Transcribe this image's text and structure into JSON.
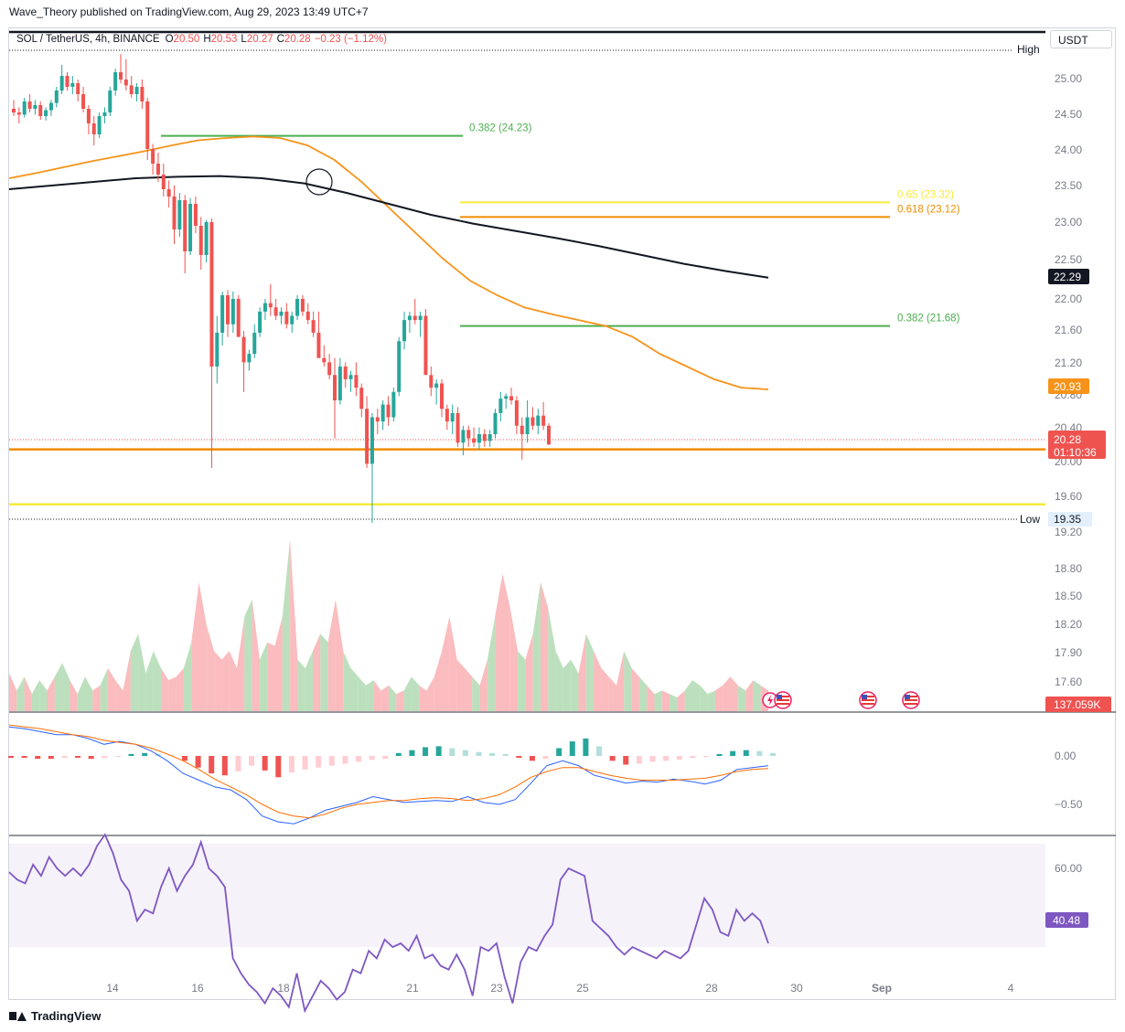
{
  "header": {
    "published": "Wave_Theory published on TradingView.com, Aug 29, 2023 13:49 UTC+7"
  },
  "legend": {
    "symbol": "SOL / TetherUS, 4h, BINANCE",
    "o_label": "O",
    "o_value": "20.50",
    "h_label": "H",
    "h_value": "20.53",
    "l_label": "L",
    "l_value": "20.27",
    "c_label": "C",
    "c_value": "20.28",
    "change": "−0.23 (−1.12%)"
  },
  "currency": "USDT",
  "footer": {
    "brand": "TradingView"
  },
  "colors": {
    "up": "#26a69a",
    "down": "#ef5350",
    "ema_orange": "#f7931a",
    "ema_black": "#131722",
    "fib_green": "#4caf50",
    "fib_yellow": "#f5eb3b",
    "fib_orange": "#f08c00",
    "macd": "#2962ff",
    "signal": "#ff6d00",
    "rsi": "#7e57c2"
  },
  "chart_data": [
    {
      "type": "candlestick",
      "title": "SOL / TetherUS, 4h, BINANCE",
      "y_axis_ticks": [
        "25.00",
        "24.50",
        "24.00",
        "23.50",
        "23.00",
        "22.50",
        "22.00",
        "21.60",
        "21.20",
        "20.80",
        "20.40",
        "20.00",
        "19.60",
        "19.20",
        "18.80",
        "18.50",
        "18.20",
        "17.90",
        "17.60"
      ],
      "x_axis_ticks": [
        "14",
        "16",
        "18",
        "21",
        "23",
        "25",
        "28",
        "30",
        "Sep",
        "4"
      ],
      "candles_ohlc": [
        [
          24.6,
          24.72,
          24.5,
          24.55
        ],
        [
          24.55,
          24.62,
          24.4,
          24.52
        ],
        [
          24.52,
          24.75,
          24.48,
          24.7
        ],
        [
          24.7,
          24.8,
          24.55,
          24.6
        ],
        [
          24.6,
          24.72,
          24.52,
          24.65
        ],
        [
          24.65,
          24.7,
          24.45,
          24.5
        ],
        [
          24.5,
          24.62,
          24.44,
          24.58
        ],
        [
          24.58,
          24.72,
          24.5,
          24.68
        ],
        [
          24.68,
          24.9,
          24.62,
          24.85
        ],
        [
          24.85,
          25.2,
          24.8,
          25.05
        ],
        [
          25.05,
          25.1,
          24.85,
          24.9
        ],
        [
          24.9,
          25.05,
          24.8,
          24.95
        ],
        [
          24.95,
          25.0,
          24.7,
          24.8
        ],
        [
          24.8,
          24.9,
          24.55,
          24.6
        ],
        [
          24.6,
          24.65,
          24.25,
          24.4
        ],
        [
          24.4,
          24.5,
          24.1,
          24.25
        ],
        [
          24.25,
          24.55,
          24.2,
          24.5
        ],
        [
          24.5,
          24.62,
          24.4,
          24.55
        ],
        [
          24.55,
          24.9,
          24.5,
          24.85
        ],
        [
          24.85,
          25.15,
          24.78,
          25.1
        ],
        [
          25.1,
          25.35,
          24.95,
          25.0
        ],
        [
          25.0,
          25.28,
          24.85,
          24.92
        ],
        [
          24.92,
          25.05,
          24.75,
          24.8
        ],
        [
          24.8,
          24.95,
          24.7,
          24.9
        ],
        [
          24.9,
          25.0,
          24.6,
          24.7
        ],
        [
          24.7,
          24.75,
          23.9,
          24.05
        ],
        [
          24.05,
          24.12,
          23.7,
          23.85
        ],
        [
          23.85,
          24.0,
          23.6,
          23.7
        ],
        [
          23.7,
          23.85,
          23.4,
          23.5
        ],
        [
          23.5,
          23.62,
          23.25,
          23.4
        ],
        [
          23.4,
          23.55,
          22.75,
          22.95
        ],
        [
          22.95,
          23.45,
          22.85,
          23.35
        ],
        [
          23.35,
          23.42,
          22.35,
          22.65
        ],
        [
          22.65,
          23.38,
          22.6,
          23.3
        ],
        [
          23.3,
          23.4,
          22.9,
          23.0
        ],
        [
          23.0,
          23.12,
          22.4,
          22.6
        ],
        [
          22.6,
          23.08,
          22.5,
          23.05
        ],
        [
          23.05,
          23.1,
          20.0,
          21.2
        ],
        [
          21.2,
          21.8,
          21.0,
          21.6
        ],
        [
          21.6,
          22.1,
          21.45,
          22.05
        ],
        [
          22.05,
          22.12,
          21.55,
          21.7
        ],
        [
          21.7,
          22.1,
          21.6,
          22.0
        ],
        [
          22.0,
          22.05,
          21.7,
          21.55
        ],
        [
          21.55,
          21.62,
          20.9,
          21.25
        ],
        [
          21.25,
          21.4,
          21.15,
          21.35
        ],
        [
          21.35,
          21.7,
          21.3,
          21.6
        ],
        [
          21.6,
          21.9,
          21.55,
          21.85
        ],
        [
          21.85,
          22.0,
          21.75,
          21.95
        ],
        [
          21.95,
          22.2,
          21.8,
          21.9
        ],
        [
          21.9,
          22.0,
          21.75,
          21.8
        ],
        [
          21.8,
          21.9,
          21.7,
          21.85
        ],
        [
          21.85,
          21.95,
          21.65,
          21.7
        ],
        [
          21.7,
          21.85,
          21.6,
          21.8
        ],
        [
          21.8,
          22.05,
          21.75,
          22.0
        ],
        [
          22.0,
          22.05,
          21.8,
          21.85
        ],
        [
          21.85,
          21.95,
          21.7,
          21.75
        ],
        [
          21.75,
          21.85,
          21.55,
          21.6
        ],
        [
          21.6,
          21.85,
          21.4,
          21.3
        ],
        [
          21.3,
          21.45,
          21.2,
          21.25
        ],
        [
          21.25,
          21.35,
          21.05,
          21.1
        ],
        [
          21.1,
          21.3,
          20.35,
          20.8
        ],
        [
          20.8,
          21.3,
          20.75,
          21.2
        ],
        [
          21.2,
          21.25,
          20.95,
          21.05
        ],
        [
          21.05,
          21.15,
          20.9,
          21.1
        ],
        [
          21.1,
          21.25,
          20.85,
          20.95
        ],
        [
          20.95,
          21.0,
          20.6,
          20.7
        ],
        [
          20.7,
          20.85,
          20.0,
          20.05
        ],
        [
          20.05,
          20.65,
          19.35,
          20.6
        ],
        [
          20.6,
          20.7,
          20.4,
          20.55
        ],
        [
          20.55,
          20.8,
          20.45,
          20.75
        ],
        [
          20.75,
          20.85,
          20.5,
          20.6
        ],
        [
          20.6,
          20.95,
          20.55,
          20.9
        ],
        [
          20.9,
          21.55,
          20.85,
          21.5
        ],
        [
          21.5,
          21.85,
          21.4,
          21.75
        ],
        [
          21.75,
          21.85,
          21.6,
          21.8
        ],
        [
          21.8,
          22.0,
          21.7,
          21.75
        ],
        [
          21.75,
          21.85,
          21.55,
          21.8
        ],
        [
          21.8,
          21.88,
          21.65,
          21.1
        ],
        [
          21.1,
          21.2,
          20.85,
          20.95
        ],
        [
          20.95,
          21.05,
          20.75,
          21.0
        ],
        [
          21.0,
          21.05,
          20.6,
          20.7
        ],
        [
          20.7,
          20.75,
          20.45,
          20.55
        ],
        [
          20.55,
          20.75,
          20.4,
          20.65
        ],
        [
          20.65,
          20.72,
          20.25,
          20.3
        ],
        [
          20.3,
          20.5,
          20.15,
          20.45
        ],
        [
          20.45,
          20.5,
          20.25,
          20.35
        ],
        [
          20.35,
          20.48,
          20.25,
          20.3
        ],
        [
          20.3,
          20.48,
          20.22,
          20.4
        ],
        [
          20.4,
          20.46,
          20.25,
          20.32
        ],
        [
          20.32,
          20.45,
          20.25,
          20.4
        ],
        [
          20.4,
          20.7,
          20.35,
          20.65
        ],
        [
          20.65,
          20.9,
          20.55,
          20.82
        ],
        [
          20.82,
          20.88,
          20.7,
          20.85
        ],
        [
          20.85,
          20.95,
          20.75,
          20.8
        ],
        [
          20.8,
          20.85,
          20.4,
          20.5
        ],
        [
          20.5,
          20.6,
          20.1,
          20.4
        ],
        [
          20.4,
          20.8,
          20.3,
          20.6
        ],
        [
          20.6,
          20.72,
          20.45,
          20.5
        ],
        [
          20.5,
          20.7,
          20.4,
          20.62
        ],
        [
          20.62,
          20.78,
          20.45,
          20.5
        ],
        [
          20.5,
          20.53,
          20.27,
          20.28
        ]
      ],
      "ema_orange": [
        23.65,
        23.72,
        23.8,
        23.88,
        23.95,
        24.02,
        24.1,
        24.17,
        24.2,
        24.22,
        24.2,
        24.1,
        23.9,
        23.6,
        23.25,
        22.9,
        22.55,
        22.25,
        22.05,
        21.9,
        21.82,
        21.75,
        21.68,
        21.55,
        21.35,
        21.2,
        21.05,
        20.95,
        20.93
      ],
      "ema_black": [
        23.5,
        23.55,
        23.6,
        23.65,
        23.67,
        23.68,
        23.65,
        23.58,
        23.45,
        23.3,
        23.15,
        23.03,
        22.93,
        22.83,
        22.72,
        22.6,
        22.48,
        22.38,
        22.29
      ],
      "levels": [
        {
          "label": "0.382 (24.23)",
          "value": 24.23
        },
        {
          "label": "0.65 (23.32)",
          "value": 23.32
        },
        {
          "label": "0.618 (23.12)",
          "value": 23.12
        },
        {
          "label": "0.382 (21.68)",
          "value": 21.68
        },
        {
          "label": "",
          "value": 20.22
        },
        {
          "label": "",
          "value": 19.57
        }
      ],
      "high_label": "High",
      "low_label": "Low",
      "low_value": "19.35",
      "price_badges": {
        "ema_black": "22.29",
        "ema_orange": "20.93",
        "last": "20.28",
        "countdown": "01:10:36"
      }
    },
    {
      "type": "bar",
      "title": "Volume",
      "last_label": "137.059K",
      "values": [
        0.22,
        0.12,
        0.2,
        0.1,
        0.18,
        0.12,
        0.2,
        0.28,
        0.18,
        0.1,
        0.2,
        0.12,
        0.15,
        0.25,
        0.18,
        0.12,
        0.35,
        0.45,
        0.22,
        0.35,
        0.25,
        0.18,
        0.2,
        0.25,
        0.4,
        0.75,
        0.5,
        0.35,
        0.3,
        0.35,
        0.25,
        0.55,
        0.65,
        0.3,
        0.4,
        0.38,
        0.55,
        1.0,
        0.3,
        0.25,
        0.35,
        0.45,
        0.4,
        0.65,
        0.35,
        0.25,
        0.2,
        0.15,
        0.18,
        0.12,
        0.15,
        0.1,
        0.12,
        0.2,
        0.15,
        0.12,
        0.2,
        0.35,
        0.55,
        0.3,
        0.25,
        0.2,
        0.15,
        0.3,
        0.55,
        0.8,
        0.6,
        0.35,
        0.3,
        0.45,
        0.75,
        0.6,
        0.35,
        0.25,
        0.3,
        0.22,
        0.45,
        0.35,
        0.25,
        0.2,
        0.15,
        0.35,
        0.25,
        0.2,
        0.15,
        0.1,
        0.12,
        0.1,
        0.08,
        0.12,
        0.18,
        0.15,
        0.1,
        0.12,
        0.15,
        0.2,
        0.15,
        0.12,
        0.18,
        0.15,
        0.12
      ],
      "colors_up": [
        0,
        1,
        0,
        1,
        1,
        0,
        1,
        1,
        0,
        1,
        1,
        0,
        1,
        0,
        0,
        0,
        1,
        1,
        1,
        1,
        0,
        0,
        0,
        1,
        0,
        0,
        0,
        0,
        0,
        0,
        0,
        1,
        0,
        1,
        0,
        0,
        1,
        0,
        1,
        1,
        0,
        1,
        0,
        0,
        1,
        1,
        1,
        1,
        0,
        0,
        1,
        0,
        1,
        1,
        0,
        0,
        0,
        0,
        0,
        0,
        0,
        1,
        0,
        1,
        0,
        0,
        0,
        1,
        0,
        1,
        0,
        1,
        1,
        1,
        1,
        0,
        1,
        0,
        0,
        0,
        0,
        1,
        0,
        1,
        0,
        1,
        0,
        1,
        0,
        1,
        1,
        1,
        1,
        0,
        0,
        0,
        1,
        0,
        1,
        0,
        0
      ]
    },
    {
      "type": "line",
      "title": "MACD",
      "y_axis_ticks": [
        "0.00",
        "−0.50"
      ],
      "macd": [
        0.3,
        0.28,
        0.25,
        0.22,
        0.22,
        0.18,
        0.12,
        0.15,
        0.12,
        0.05,
        -0.05,
        -0.18,
        -0.25,
        -0.32,
        -0.35,
        -0.45,
        -0.62,
        -0.68,
        -0.7,
        -0.64,
        -0.56,
        -0.52,
        -0.48,
        -0.42,
        -0.45,
        -0.48,
        -0.47,
        -0.46,
        -0.47,
        -0.42,
        -0.48,
        -0.5,
        -0.45,
        -0.28,
        -0.1,
        -0.05,
        -0.1,
        -0.2,
        -0.24,
        -0.28,
        -0.26,
        -0.27,
        -0.24,
        -0.26,
        -0.29,
        -0.25,
        -0.14,
        -0.12,
        -0.1
      ],
      "signal": [
        0.32,
        0.3,
        0.28,
        0.25,
        0.22,
        0.2,
        0.16,
        0.14,
        0.12,
        0.08,
        0.02,
        -0.05,
        -0.14,
        -0.24,
        -0.32,
        -0.4,
        -0.5,
        -0.58,
        -0.62,
        -0.64,
        -0.6,
        -0.54,
        -0.5,
        -0.48,
        -0.46,
        -0.46,
        -0.44,
        -0.43,
        -0.44,
        -0.46,
        -0.44,
        -0.4,
        -0.32,
        -0.22,
        -0.16,
        -0.12,
        -0.12,
        -0.16,
        -0.2,
        -0.23,
        -0.25,
        -0.25,
        -0.25,
        -0.24,
        -0.23,
        -0.2,
        -0.16,
        -0.14,
        -0.13
      ],
      "hist": [
        -0.02,
        -0.02,
        -0.03,
        -0.03,
        -0.02,
        -0.02,
        -0.03,
        -0.02,
        -0.01,
        0.02,
        0.03,
        0.02,
        0.01,
        -0.05,
        -0.12,
        -0.18,
        -0.2,
        -0.16,
        -0.1,
        -0.15,
        -0.22,
        -0.17,
        -0.14,
        -0.12,
        -0.1,
        -0.08,
        -0.06,
        -0.04,
        -0.03,
        0.03,
        0.06,
        0.09,
        0.1,
        0.08,
        0.06,
        0.04,
        0.03,
        0.02,
        -0.02,
        -0.05,
        -0.03,
        0.08,
        0.15,
        0.18,
        0.1,
        -0.05,
        -0.09,
        -0.08,
        -0.06,
        -0.05,
        -0.04,
        -0.02,
        -0.01,
        0.02,
        0.05,
        0.06,
        0.05,
        0.03
      ]
    },
    {
      "type": "line",
      "title": "RSI",
      "y_axis_ticks": [
        "60.00"
      ],
      "last_label": "40.48",
      "values": [
        59,
        57,
        56,
        61,
        58,
        63,
        60,
        58,
        60,
        58,
        61,
        66,
        69,
        64,
        57,
        54,
        46,
        49,
        48,
        55,
        60,
        54,
        58,
        61,
        67,
        60,
        58,
        55,
        36,
        32,
        29,
        27,
        24,
        28,
        26,
        23,
        32,
        22,
        26,
        30,
        28,
        25,
        27,
        33,
        32,
        38,
        36,
        41,
        39,
        40,
        38,
        42,
        36,
        37,
        34,
        33,
        37,
        33,
        26,
        39,
        38,
        40,
        31,
        24,
        35,
        39,
        38,
        42,
        45,
        57,
        60,
        59,
        58,
        46,
        44,
        42,
        39,
        37,
        39,
        38,
        37,
        36,
        38,
        37,
        36,
        38,
        45,
        52,
        49,
        43,
        42,
        49,
        46,
        48,
        46,
        40
      ]
    }
  ]
}
